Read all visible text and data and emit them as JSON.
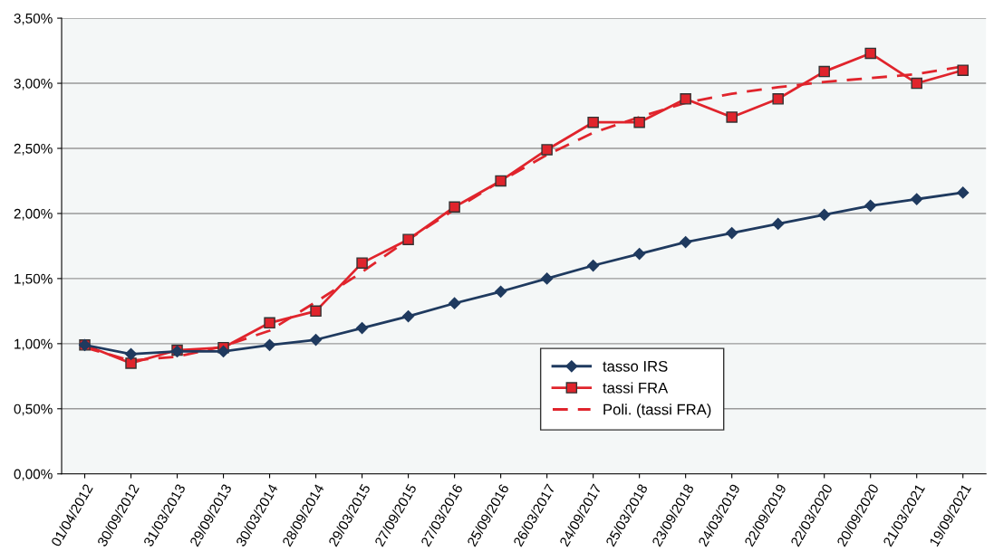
{
  "chart_data": {
    "type": "line",
    "categories": [
      "01/04/2012",
      "30/09/2012",
      "31/03/2013",
      "29/09/2013",
      "30/03/2014",
      "28/09/2014",
      "29/03/2015",
      "27/09/2015",
      "27/03/2016",
      "25/09/2016",
      "26/03/2017",
      "24/09/2017",
      "25/03/2018",
      "23/09/2018",
      "24/03/2019",
      "22/09/2019",
      "22/03/2020",
      "20/09/2020",
      "21/03/2021",
      "19/09/2021"
    ],
    "series": [
      {
        "name": "tasso IRS",
        "color": "#1f3a5f",
        "marker": "diamond",
        "line_style": "solid",
        "values": [
          0.99,
          0.92,
          0.94,
          0.94,
          0.99,
          1.03,
          1.12,
          1.21,
          1.31,
          1.4,
          1.5,
          1.6,
          1.69,
          1.78,
          1.85,
          1.92,
          1.99,
          2.06,
          2.11,
          2.16
        ]
      },
      {
        "name": "tassi FRA",
        "color": "#e0242c",
        "marker": "square",
        "line_style": "solid",
        "values": [
          0.99,
          0.85,
          0.95,
          0.97,
          1.16,
          1.25,
          1.62,
          1.8,
          2.05,
          2.25,
          2.49,
          2.7,
          2.7,
          2.88,
          2.74,
          2.88,
          3.09,
          3.23,
          3.0,
          3.1
        ]
      },
      {
        "name": "Poli. (tassi FRA)",
        "color": "#e0242c",
        "marker": "none",
        "line_style": "dashed",
        "values": [
          0.97,
          0.87,
          0.9,
          0.98,
          1.1,
          1.32,
          1.55,
          1.8,
          2.03,
          2.25,
          2.45,
          2.62,
          2.74,
          2.85,
          2.92,
          2.97,
          3.01,
          3.04,
          3.07,
          3.13
        ]
      }
    ],
    "ylim": [
      0,
      3.5
    ],
    "yticks": [
      {
        "value": 0,
        "label": "0,00%"
      },
      {
        "value": 0.5,
        "label": "0,50%"
      },
      {
        "value": 1,
        "label": "1,00%"
      },
      {
        "value": 1.5,
        "label": "1,50%"
      },
      {
        "value": 2,
        "label": "2,00%"
      },
      {
        "value": 2.5,
        "label": "2,50%"
      },
      {
        "value": 3,
        "label": "3,00%"
      },
      {
        "value": 3.5,
        "label": "3,50%"
      }
    ],
    "grid": "y",
    "legend": "bottom"
  }
}
